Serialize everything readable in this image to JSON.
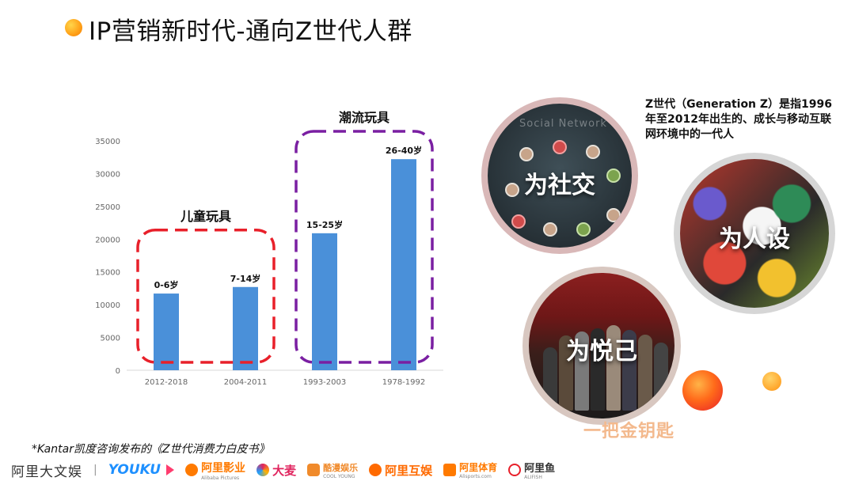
{
  "slide": {
    "title": "IP营销新时代-通向Z世代人群"
  },
  "chart_data": {
    "type": "bar",
    "categories": [
      "2012-2018",
      "2004-2011",
      "1993-2003",
      "1978-1992"
    ],
    "values": [
      11700,
      12700,
      20900,
      32200
    ],
    "data_labels": [
      "0-6岁",
      "7-14岁",
      "15-25岁",
      "26-40岁"
    ],
    "ylim": [
      0,
      35000
    ],
    "yticks": [
      0,
      5000,
      10000,
      15000,
      20000,
      25000,
      30000,
      35000
    ],
    "bar_color": "#4a90d9",
    "grid": false,
    "groups": [
      {
        "label": "儿童玩具",
        "categories": [
          "2012-2018",
          "2004-2011"
        ],
        "color": "#e8202a"
      },
      {
        "label": "潮流玩具",
        "categories": [
          "1993-2003",
          "1978-1992"
        ],
        "color": "#7a1fa2"
      }
    ]
  },
  "circles": {
    "social": {
      "label": "为社交",
      "bg_text": "Social   Network"
    },
    "persona": {
      "label": "为人设"
    },
    "self": {
      "label": "为悦己"
    }
  },
  "zgen_description": "Z世代（Generation Z）是指1996年至2012年出生的、成长与移动互联网环境中的一代人",
  "golden_key": "一把金钥匙",
  "footnote": "*Kantar凯度咨询发布的《Z世代消费力白皮书》",
  "footer": {
    "brands": [
      {
        "name": "阿里大文娱"
      },
      {
        "name": "YOUKU"
      },
      {
        "name": "阿里影业",
        "sub": "Alibaba Pictures"
      },
      {
        "name": "大麦"
      },
      {
        "name": "酷漫娱乐",
        "sub": "COOL YOUNG"
      },
      {
        "name": "阿里互娱"
      },
      {
        "name": "阿里体育",
        "sub": "Alisports.com"
      },
      {
        "name": "阿里鱼",
        "sub": "ALIFISH"
      }
    ]
  },
  "colors": {
    "accent_orange": "#ff8a00",
    "bar_blue": "#4a90d9",
    "kids_box": "#e8202a",
    "trend_box": "#7a1fa2",
    "golden_key": "#f3b98d"
  }
}
